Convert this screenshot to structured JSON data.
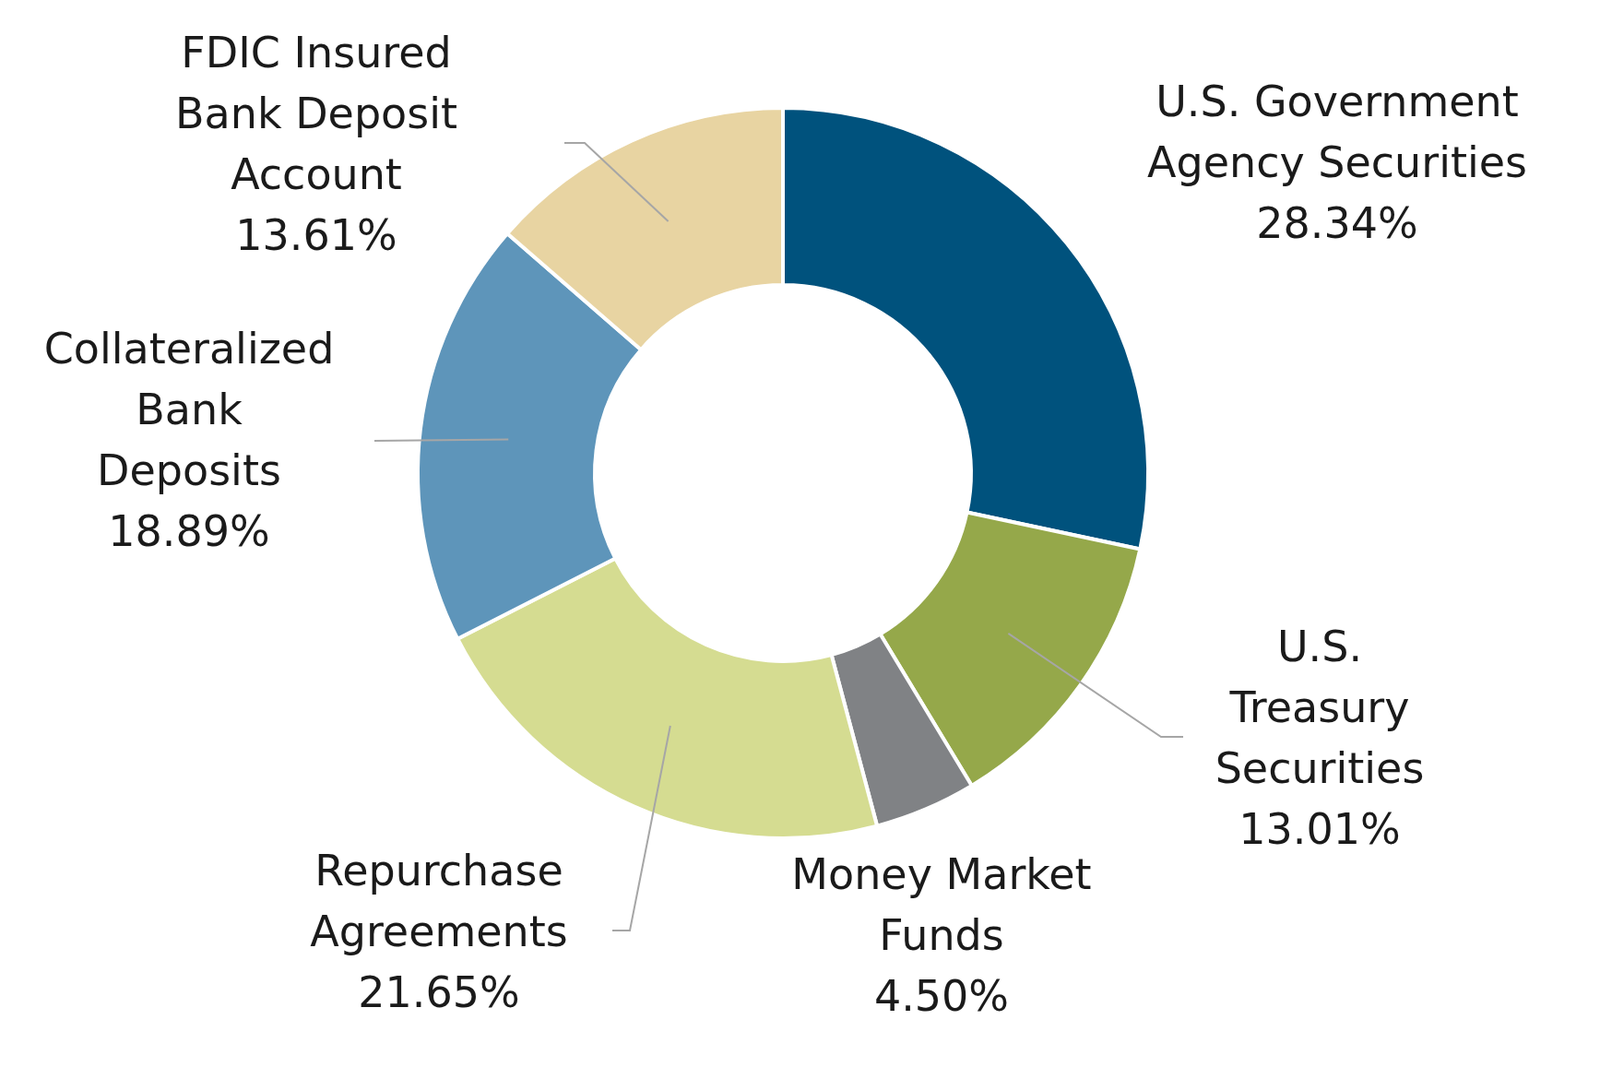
{
  "chart_data": {
    "type": "doughnut",
    "categories": [
      "U.S. Government Agency Securities",
      "U.S. Treasury Securities",
      "Money Market Funds",
      "Repurchase Agreements",
      "Collateralized Bank Deposits",
      "FDIC Insured Bank Deposit Account"
    ],
    "values": [
      28.34,
      13.01,
      4.5,
      21.65,
      18.89,
      13.61
    ],
    "value_labels": [
      "28.34%",
      "13.01%",
      "4.50%",
      "21.65%",
      "18.89%",
      "13.61%"
    ],
    "colors": [
      "#00527d",
      "#95a84a",
      "#808285",
      "#d5dc91",
      "#5e95ba",
      "#e8d4a2"
    ],
    "data_labels": true
  }
}
